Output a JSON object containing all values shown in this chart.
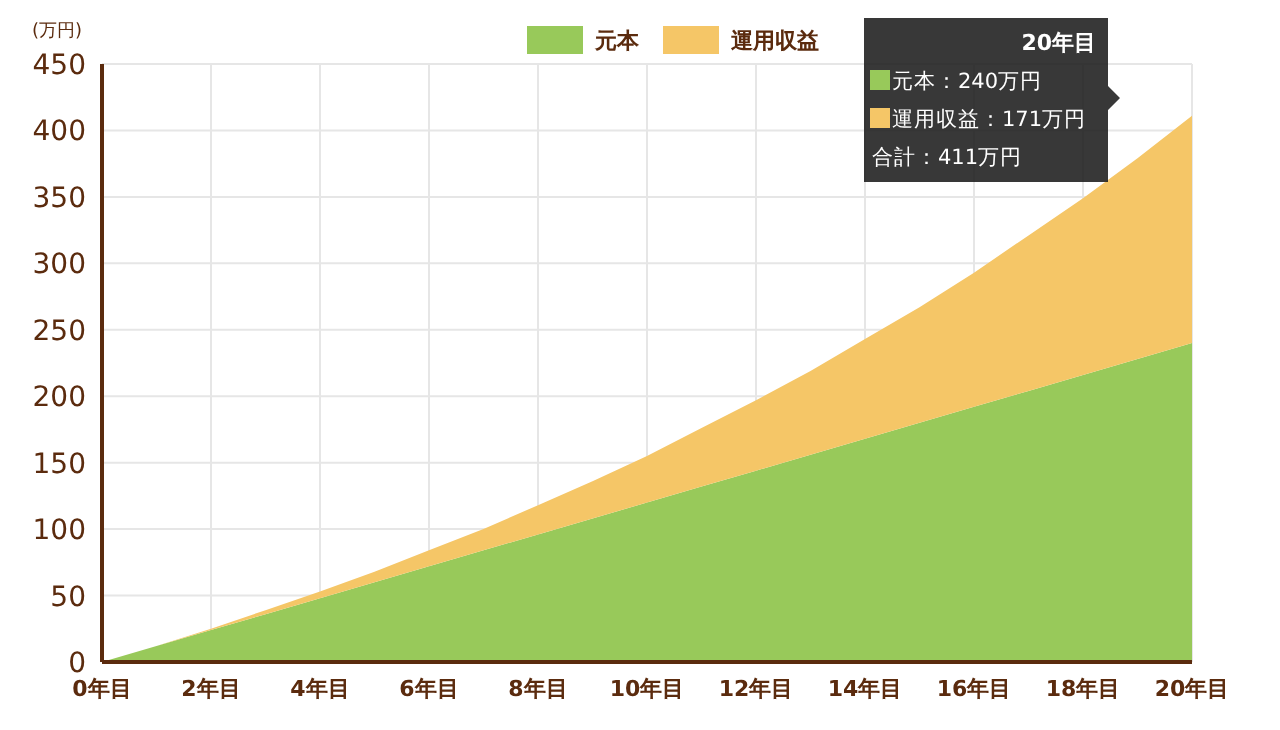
{
  "chart_data": {
    "type": "area",
    "stacked": true,
    "ylabel": "(万円)",
    "x": [
      0,
      1,
      2,
      3,
      4,
      5,
      6,
      7,
      8,
      9,
      10,
      11,
      12,
      13,
      14,
      15,
      16,
      17,
      18,
      19,
      20
    ],
    "series": [
      {
        "name": "元本",
        "color": "#98c95a",
        "values": [
          0,
          12,
          24,
          36,
          48,
          60,
          72,
          84,
          96,
          108,
          120,
          132,
          144,
          156,
          168,
          180,
          192,
          204,
          216,
          228,
          240
        ]
      },
      {
        "name": "運用収益",
        "color": "#f5c667",
        "values": [
          0,
          0,
          1,
          3,
          5,
          8,
          12,
          16,
          22,
          28,
          35,
          44,
          53,
          63,
          75,
          87,
          101,
          117,
          133,
          151,
          171
        ]
      }
    ],
    "xlim": [
      0,
      20
    ],
    "xticks": [
      {
        "value": 0,
        "label": "0年目"
      },
      {
        "value": 2,
        "label": "2年目"
      },
      {
        "value": 4,
        "label": "4年目"
      },
      {
        "value": 6,
        "label": "6年目"
      },
      {
        "value": 8,
        "label": "8年目"
      },
      {
        "value": 10,
        "label": "10年目"
      },
      {
        "value": 12,
        "label": "12年目"
      },
      {
        "value": 14,
        "label": "14年目"
      },
      {
        "value": 16,
        "label": "16年目"
      },
      {
        "value": 18,
        "label": "18年目"
      },
      {
        "value": 20,
        "label": "20年目"
      }
    ],
    "ylim": [
      0,
      450
    ],
    "yticks": [
      0,
      50,
      100,
      150,
      200,
      250,
      300,
      350,
      400,
      450
    ],
    "grid": true,
    "legend": "top",
    "annotations": [
      "20年目",
      "元本：240万円",
      "運用収益：171万円",
      "合計：411万円"
    ]
  }
}
